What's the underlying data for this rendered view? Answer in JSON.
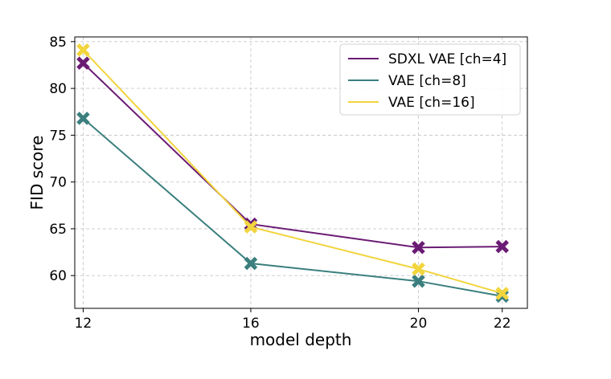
{
  "chart_data": {
    "type": "line",
    "title": "",
    "xlabel": "model depth",
    "ylabel": "FID score",
    "x": [
      12,
      16,
      20,
      22
    ],
    "xticks": [
      "12",
      "16",
      "20",
      "22"
    ],
    "yticks": [
      "60",
      "65",
      "70",
      "75",
      "80",
      "85"
    ],
    "xlim": [
      11.8,
      22.6
    ],
    "ylim": [
      56.5,
      85.5
    ],
    "grid": true,
    "legend_position": "top-right",
    "marker": "X",
    "series": [
      {
        "name": "SDXL VAE [ch=4]",
        "color": "#6a1b74",
        "values": [
          82.7,
          65.5,
          63.0,
          63.1
        ]
      },
      {
        "name": "VAE [ch=8]",
        "color": "#3a7f7e",
        "values": [
          76.8,
          61.3,
          59.4,
          57.8
        ]
      },
      {
        "name": "VAE [ch=16]",
        "color": "#f2d43d",
        "values": [
          84.1,
          65.2,
          60.7,
          58.1
        ]
      }
    ]
  }
}
